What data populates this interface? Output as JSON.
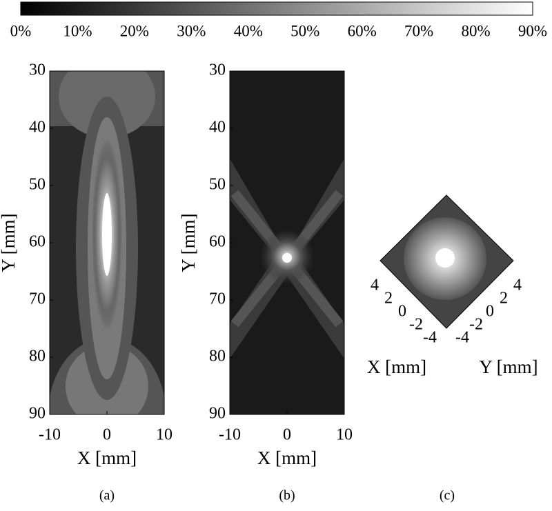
{
  "colorbar": {
    "ticks": [
      "0%",
      "10%",
      "20%",
      "30%",
      "40%",
      "50%",
      "60%",
      "70%",
      "80%",
      "90%"
    ]
  },
  "panels": [
    {
      "caption": "(a)",
      "xlabel": "X [mm]",
      "ylabel": "Y [mm]",
      "xticks": [
        "-10",
        "0",
        "10"
      ],
      "yticks": [
        "30",
        "40",
        "50",
        "60",
        "70",
        "80",
        "90"
      ]
    },
    {
      "caption": "(b)",
      "xlabel": "X [mm]",
      "ylabel": "Y [mm]",
      "xticks": [
        "-10",
        "0",
        "10"
      ],
      "yticks": [
        "30",
        "40",
        "50",
        "60",
        "70",
        "80",
        "90"
      ]
    },
    {
      "caption": "(c)",
      "xlabel": "X [mm]",
      "ylabel": "Y [mm]",
      "xticks": [
        "4",
        "2",
        "0",
        "-2",
        "-4"
      ],
      "yticks": [
        "4",
        "2",
        "0",
        "-2",
        "-4"
      ]
    }
  ]
}
